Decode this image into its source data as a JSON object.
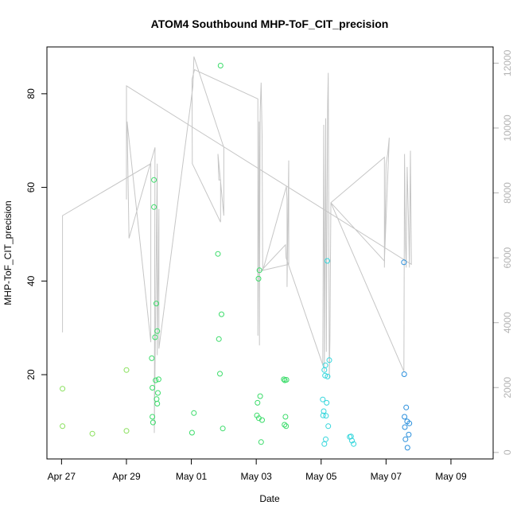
{
  "chart_data": {
    "type": "scatter",
    "title": "ATOM4 Southbound MHP-ToF_CIT_precision",
    "xlabel": "Date",
    "ylabel": "MHP-ToF_CIT_precision",
    "x_tick_labels": [
      "Apr 27",
      "Apr 29",
      "May 01",
      "May 03",
      "May 05",
      "May 07",
      "May 09"
    ],
    "x_tick_days": [
      0,
      2,
      4,
      6,
      8,
      10,
      12
    ],
    "xlim_days": [
      -0.45,
      13.3
    ],
    "ylim": [
      2,
      90
    ],
    "y_ticks": [
      20,
      40,
      60,
      80
    ],
    "y2lim": [
      -200,
      12500
    ],
    "y2_ticks": [
      0,
      2000,
      4000,
      6000,
      8000,
      10000,
      12000
    ],
    "grid": false,
    "colors": {
      "line": "#c6c6c6",
      "points_early": "#88e05a",
      "points_mid": "#3bdc6a",
      "points_late": "#34d6dc",
      "points_end": "#2a8fdc"
    },
    "points": [
      {
        "x": 0.03,
        "y": 17.0
      },
      {
        "x": 0.03,
        "y": 9.0
      },
      {
        "x": 0.95,
        "y": 7.4
      },
      {
        "x": 2.0,
        "y": 21.0
      },
      {
        "x": 2.0,
        "y": 8.0
      },
      {
        "x": 2.78,
        "y": 23.5
      },
      {
        "x": 2.8,
        "y": 17.2
      },
      {
        "x": 2.8,
        "y": 11.0
      },
      {
        "x": 2.82,
        "y": 9.8
      },
      {
        "x": 2.85,
        "y": 61.6
      },
      {
        "x": 2.85,
        "y": 55.8
      },
      {
        "x": 2.88,
        "y": 28.0
      },
      {
        "x": 2.9,
        "y": 18.8
      },
      {
        "x": 2.92,
        "y": 35.2
      },
      {
        "x": 2.93,
        "y": 14.8
      },
      {
        "x": 2.95,
        "y": 13.8
      },
      {
        "x": 2.95,
        "y": 29.3
      },
      {
        "x": 2.97,
        "y": 16.1
      },
      {
        "x": 2.99,
        "y": 19.0
      },
      {
        "x": 4.02,
        "y": 7.6
      },
      {
        "x": 4.08,
        "y": 11.8
      },
      {
        "x": 4.82,
        "y": 45.8
      },
      {
        "x": 4.85,
        "y": 27.6
      },
      {
        "x": 4.88,
        "y": 20.2
      },
      {
        "x": 4.9,
        "y": 86.0
      },
      {
        "x": 4.93,
        "y": 32.9
      },
      {
        "x": 4.97,
        "y": 8.5
      },
      {
        "x": 6.02,
        "y": 11.3
      },
      {
        "x": 6.04,
        "y": 14.0
      },
      {
        "x": 6.07,
        "y": 40.5
      },
      {
        "x": 6.08,
        "y": 10.7
      },
      {
        "x": 6.1,
        "y": 42.3
      },
      {
        "x": 6.12,
        "y": 15.4
      },
      {
        "x": 6.15,
        "y": 5.6
      },
      {
        "x": 6.18,
        "y": 10.3
      },
      {
        "x": 6.85,
        "y": 19.0
      },
      {
        "x": 6.87,
        "y": 9.3
      },
      {
        "x": 6.88,
        "y": 18.8
      },
      {
        "x": 6.9,
        "y": 11.0
      },
      {
        "x": 6.92,
        "y": 9.0
      },
      {
        "x": 6.93,
        "y": 18.9
      },
      {
        "x": 8.05,
        "y": 14.7
      },
      {
        "x": 8.06,
        "y": 11.3
      },
      {
        "x": 8.08,
        "y": 12.2
      },
      {
        "x": 8.1,
        "y": 21.0
      },
      {
        "x": 8.1,
        "y": 5.2
      },
      {
        "x": 8.12,
        "y": 19.8
      },
      {
        "x": 8.13,
        "y": 22.0
      },
      {
        "x": 8.14,
        "y": 6.2
      },
      {
        "x": 8.15,
        "y": 11.2
      },
      {
        "x": 8.17,
        "y": 14.0
      },
      {
        "x": 8.19,
        "y": 44.3
      },
      {
        "x": 8.2,
        "y": 19.6
      },
      {
        "x": 8.22,
        "y": 9.0
      },
      {
        "x": 8.25,
        "y": 23.1
      },
      {
        "x": 8.88,
        "y": 6.7
      },
      {
        "x": 8.92,
        "y": 6.8
      },
      {
        "x": 8.95,
        "y": 5.9
      },
      {
        "x": 9.0,
        "y": 5.2
      },
      {
        "x": 10.55,
        "y": 44.0
      },
      {
        "x": 10.56,
        "y": 20.1
      },
      {
        "x": 10.57,
        "y": 11.0
      },
      {
        "x": 10.58,
        "y": 8.8
      },
      {
        "x": 10.6,
        "y": 6.2
      },
      {
        "x": 10.62,
        "y": 13.0
      },
      {
        "x": 10.65,
        "y": 10.0
      },
      {
        "x": 10.66,
        "y": 4.4
      },
      {
        "x": 10.7,
        "y": 7.2
      },
      {
        "x": 10.72,
        "y": 9.6
      }
    ],
    "line_series_y2": [
      [
        0.03,
        3700
      ],
      [
        0.03,
        7300
      ],
      [
        2.75,
        8900
      ],
      [
        2.75,
        3400
      ],
      [
        2.02,
        10200
      ],
      [
        2.08,
        6600
      ],
      [
        2.88,
        9400
      ],
      [
        2.86,
        600
      ],
      [
        2.95,
        8900
      ],
      [
        2.95,
        3000
      ],
      [
        3.0,
        7500
      ],
      [
        3.0,
        3200
      ],
      [
        4.05,
        11300
      ],
      [
        4.08,
        12200
      ],
      [
        5.0,
        9400
      ],
      [
        5.0,
        7300
      ],
      [
        4.82,
        9200
      ],
      [
        4.85,
        8400
      ],
      [
        4.9,
        8400
      ],
      [
        4.9,
        7100
      ],
      [
        4.03,
        8900
      ],
      [
        4.02,
        11500
      ],
      [
        4.1,
        11800
      ],
      [
        6.05,
        10900
      ],
      [
        6.05,
        3600
      ],
      [
        6.09,
        10200
      ],
      [
        6.1,
        3300
      ],
      [
        6.12,
        10500
      ],
      [
        6.15,
        11400
      ],
      [
        6.18,
        9800
      ],
      [
        6.2,
        5600
      ],
      [
        6.93,
        8200
      ],
      [
        6.95,
        7800
      ],
      [
        6.95,
        5100
      ],
      [
        7.0,
        9000
      ],
      [
        7.0,
        5800
      ],
      [
        6.15,
        5600
      ],
      [
        6.9,
        6400
      ],
      [
        6.92,
        6000
      ],
      [
        8.05,
        2700
      ],
      [
        8.08,
        10100
      ],
      [
        8.1,
        2500
      ],
      [
        8.14,
        10300
      ],
      [
        8.16,
        3100
      ],
      [
        8.2,
        10700
      ],
      [
        8.22,
        11700
      ],
      [
        8.25,
        2300
      ],
      [
        8.27,
        3500
      ],
      [
        8.3,
        7700
      ],
      [
        9.95,
        9100
      ],
      [
        9.95,
        5700
      ],
      [
        10.0,
        8900
      ],
      [
        10.05,
        9200
      ],
      [
        10.1,
        9700
      ],
      [
        9.95,
        5900
      ],
      [
        8.3,
        7700
      ],
      [
        10.55,
        2500
      ],
      [
        10.57,
        9200
      ],
      [
        10.6,
        6400
      ],
      [
        10.62,
        5700
      ],
      [
        10.65,
        8800
      ],
      [
        10.7,
        6800
      ],
      [
        10.72,
        5700
      ],
      [
        10.75,
        9300
      ],
      [
        10.78,
        5800
      ],
      [
        2.0,
        11300
      ],
      [
        2.0,
        7800
      ]
    ]
  }
}
